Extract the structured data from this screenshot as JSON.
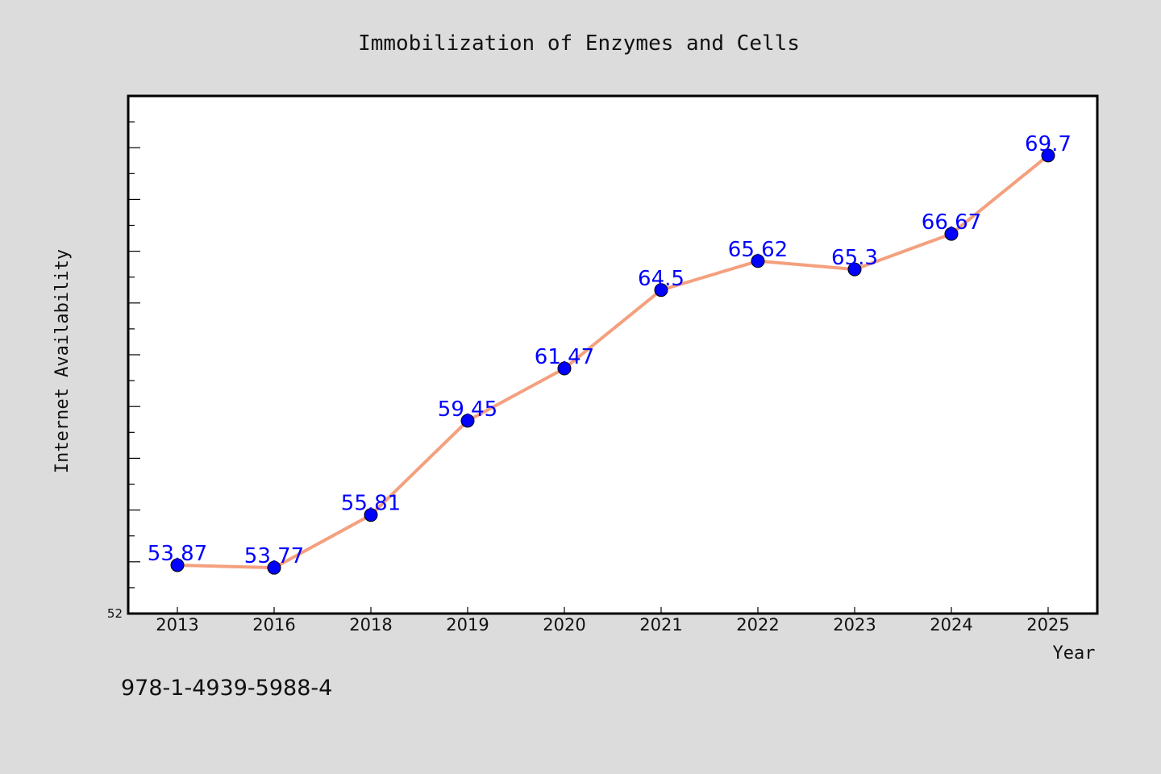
{
  "colors": {
    "background": "#dcdcdc",
    "plot_area": "#ffffff",
    "line": "#f4a07e",
    "marker": "#0000ff",
    "data_label": "#0000ff"
  },
  "footer": {
    "isbn": "978-1-4939-5988-4"
  },
  "chart_data": {
    "type": "line",
    "title": "Immobilization of Enzymes and Cells",
    "xlabel": "Year",
    "ylabel": "Internet Availability",
    "categories": [
      "2013",
      "2016",
      "2018",
      "2019",
      "2020",
      "2021",
      "2022",
      "2023",
      "2024",
      "2025"
    ],
    "series": [
      {
        "values": [
          53.87,
          53.77,
          55.81,
          59.45,
          61.47,
          64.5,
          65.62,
          65.3,
          66.67,
          69.7
        ],
        "data_labels": [
          "53.87",
          "53.77",
          "55.81",
          "59.45",
          "61.47",
          "64.5",
          "65.62",
          "65.3",
          "66.67",
          "69.7"
        ]
      }
    ],
    "ylim": [
      52,
      72
    ],
    "y_min_label": "52",
    "grid": false,
    "legend": "none"
  }
}
